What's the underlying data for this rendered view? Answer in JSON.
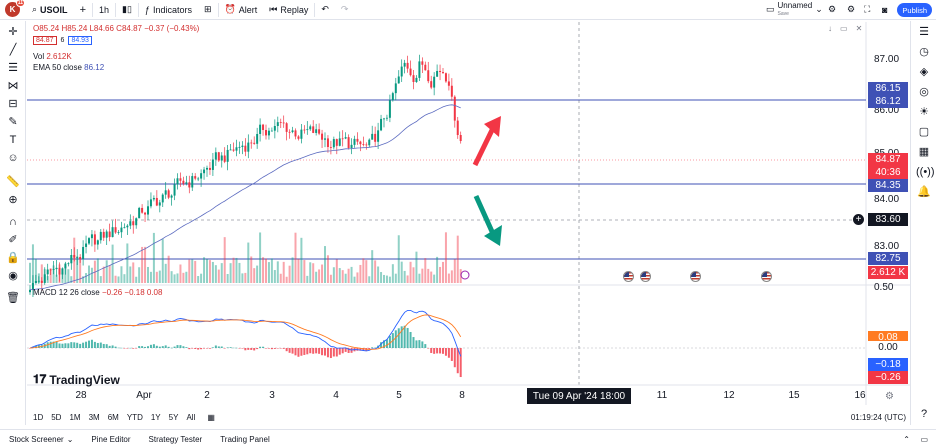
{
  "header": {
    "avatar_letter": "K",
    "avatar_badge": "11",
    "symbol": "USOIL",
    "interval": "1h",
    "indicators_label": "Indicators",
    "alert_label": "Alert",
    "replay_label": "Replay",
    "layout_name": "Unnamed",
    "layout_status": "Save",
    "publish_label": "Publish"
  },
  "legend": {
    "ohlc": "O85.24 H85.24 L84.66 C84.87 −0.37 (−0.43%)",
    "bid": "84.87",
    "spread": "6",
    "ask": "84.93",
    "vol_label": "Vol",
    "vol_value": "2.612K",
    "ema_label": "EMA 50 close",
    "ema_value": "86.12",
    "macd_label": "MACD 12 26 close",
    "macd_values": "−0.26  −0.18  0.08"
  },
  "price_axis": {
    "labels": [
      "87.00",
      "86.00",
      "85.00",
      "84.00",
      "83.00",
      "0.50"
    ],
    "tags": [
      {
        "text": "86.15",
        "color": "#3f51b5"
      },
      {
        "text": "86.12",
        "color": "#3f51b5"
      },
      {
        "text": "84.87",
        "color": "#f23645"
      },
      {
        "text": "40:36",
        "color": "#f23645"
      },
      {
        "text": "84.35",
        "color": "#3f51b5"
      },
      {
        "text": "83.60",
        "color": "#131722"
      },
      {
        "text": "82.75",
        "color": "#3f51b5"
      },
      {
        "text": "2.612 K",
        "color": "#f23645"
      },
      {
        "text": "0.08",
        "color": "#ff7b22"
      },
      {
        "text": "0.00",
        "color": "#ffffff"
      },
      {
        "text": "−0.18",
        "color": "#2962ff"
      },
      {
        "text": "−0.26",
        "color": "#f23645"
      }
    ]
  },
  "time_axis": {
    "labels": [
      "28",
      "Apr",
      "2",
      "3",
      "4",
      "5",
      "8",
      "11",
      "12",
      "15",
      "16"
    ],
    "crosshair_date": "Tue 09 Apr '24   18:00"
  },
  "range_bar": {
    "ranges": [
      "1D",
      "5D",
      "1M",
      "3M",
      "6M",
      "YTD",
      "1Y",
      "5Y",
      "All"
    ],
    "clock": "01:19:24 (UTC)"
  },
  "bottom_tabs": [
    "Stock Screener",
    "Pine Editor",
    "Strategy Tester",
    "Trading Panel"
  ],
  "brand": "TradingView",
  "chart_data": {
    "type": "candlestick",
    "horizontal_levels": [
      86.15,
      84.35,
      82.75
    ],
    "crosshair_price": 83.6,
    "last_price": 84.87,
    "ema50_last": 86.12,
    "macd": {
      "macd": -0.18,
      "signal": -0.26,
      "histogram": 0.08
    }
  }
}
